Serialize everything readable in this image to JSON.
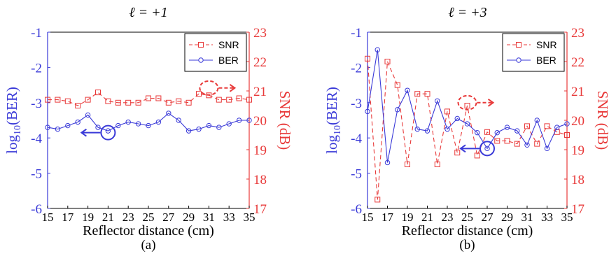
{
  "colors": {
    "ber": "#3a3ad8",
    "snr": "#e83a3a",
    "axis": "#000000"
  },
  "chart_data": [
    {
      "type": "line",
      "title": "ℓ = +1",
      "caption": "(a)",
      "xlabel": "Reflector distance (cm)",
      "ylabel_left_prefix": "log",
      "ylabel_left_sub": "10",
      "ylabel_left_suffix": "(BER)",
      "ylabel_right": "SNR (dB)",
      "xlim": [
        15,
        35
      ],
      "ylim_left": [
        -6,
        -1
      ],
      "ylim_right": [
        17,
        23
      ],
      "x_ticks": [
        "15",
        "17",
        "19",
        "21",
        "23",
        "25",
        "27",
        "29",
        "31",
        "33",
        "35"
      ],
      "y_ticks_left": [
        "-1",
        "-2",
        "-3",
        "-4",
        "-5",
        "-6"
      ],
      "y_ticks_right": [
        "23",
        "22",
        "21",
        "20",
        "19",
        "18",
        "17"
      ],
      "legend": {
        "position": "top-right",
        "entries": [
          "SNR",
          "BER"
        ]
      },
      "x": [
        15,
        16,
        17,
        18,
        19,
        20,
        21,
        22,
        23,
        24,
        25,
        26,
        27,
        28,
        29,
        30,
        31,
        32,
        33,
        34,
        35
      ],
      "series": [
        {
          "name": "SNR",
          "axis": "right",
          "marker": "square",
          "dash": true,
          "values": [
            20.7,
            20.7,
            20.65,
            20.5,
            20.7,
            20.95,
            20.65,
            20.6,
            20.6,
            20.6,
            20.75,
            20.75,
            20.6,
            20.65,
            20.6,
            20.9,
            20.85,
            20.7,
            20.7,
            20.75,
            20.7
          ]
        },
        {
          "name": "BER",
          "axis": "left",
          "marker": "circle",
          "dash": false,
          "values": [
            -3.7,
            -3.75,
            -3.65,
            -3.55,
            -3.35,
            -3.7,
            -3.8,
            -3.65,
            -3.55,
            -3.6,
            -3.65,
            -3.55,
            -3.3,
            -3.5,
            -3.8,
            -3.75,
            -3.65,
            -3.7,
            -3.6,
            -3.5,
            -3.5
          ]
        }
      ],
      "annotations": [
        {
          "type": "circle",
          "color": "ber",
          "x": 21,
          "y": -3.85,
          "axis": "left",
          "arrow": "left"
        },
        {
          "type": "dashed-ellipse",
          "color": "snr",
          "x": 31,
          "y": 21.1,
          "axis": "right",
          "arrow": "right"
        }
      ]
    },
    {
      "type": "line",
      "title": "ℓ = +3",
      "caption": "(b)",
      "xlabel": "Reflector distance (cm)",
      "ylabel_left_prefix": "log",
      "ylabel_left_sub": "10",
      "ylabel_left_suffix": "(BER)",
      "ylabel_right": "SNR (dB)",
      "xlim": [
        15,
        35
      ],
      "ylim_left": [
        -6,
        -1
      ],
      "ylim_right": [
        17,
        23
      ],
      "x_ticks": [
        "15",
        "17",
        "19",
        "21",
        "23",
        "25",
        "27",
        "29",
        "31",
        "33",
        "35"
      ],
      "y_ticks_left": [
        "-1",
        "-2",
        "-3",
        "-4",
        "-5",
        "-6"
      ],
      "y_ticks_right": [
        "23",
        "22",
        "21",
        "20",
        "19",
        "18",
        "17"
      ],
      "legend": {
        "position": "top-right",
        "entries": [
          "SNR",
          "BER"
        ]
      },
      "x": [
        15,
        16,
        17,
        18,
        19,
        20,
        21,
        22,
        23,
        24,
        25,
        26,
        27,
        28,
        29,
        30,
        31,
        32,
        33,
        34,
        35
      ],
      "series": [
        {
          "name": "SNR",
          "axis": "right",
          "marker": "square",
          "dash": true,
          "values": [
            22.1,
            17.3,
            22.0,
            21.2,
            18.5,
            20.9,
            20.9,
            18.5,
            20.3,
            18.9,
            20.5,
            18.8,
            19.6,
            19.3,
            19.3,
            19.2,
            19.8,
            19.2,
            19.8,
            19.6,
            19.5
          ]
        },
        {
          "name": "BER",
          "axis": "left",
          "marker": "circle",
          "dash": false,
          "values": [
            -3.25,
            -1.5,
            -4.7,
            -3.2,
            -2.65,
            -3.75,
            -3.8,
            -2.95,
            -3.75,
            -3.45,
            -3.6,
            -3.85,
            -4.3,
            -3.85,
            -3.7,
            -3.8,
            -4.2,
            -3.5,
            -4.3,
            -3.7,
            -3.6
          ]
        }
      ],
      "annotations": [
        {
          "type": "circle",
          "color": "ber",
          "x": 27,
          "y": -4.3,
          "axis": "left",
          "arrow": "left"
        },
        {
          "type": "dashed-ellipse",
          "color": "snr",
          "x": 25,
          "y": 20.6,
          "axis": "right",
          "arrow": "right"
        }
      ]
    }
  ]
}
